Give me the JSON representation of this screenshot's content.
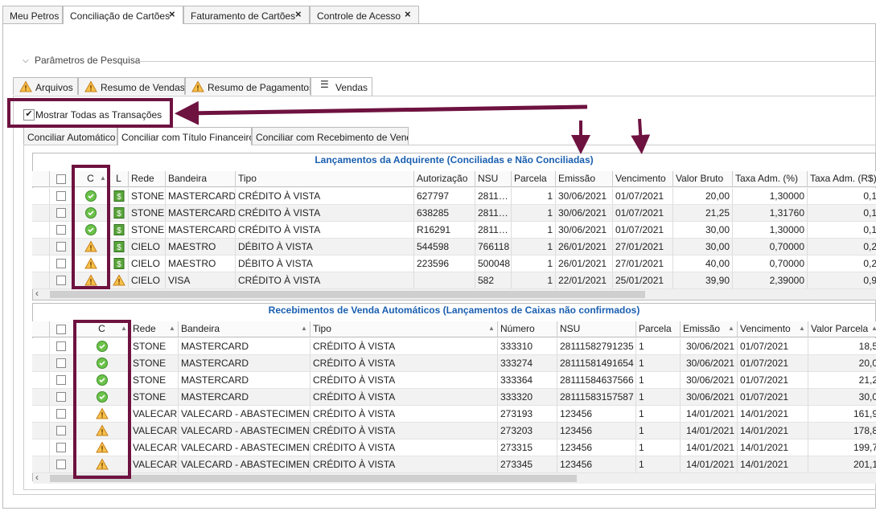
{
  "top_tabs": [
    "Meu Petros",
    "Conciliação de Cartões",
    "Faturamento de Cartões",
    "Controle de Acesso"
  ],
  "section_title": "Parâmetros de Pesquisa",
  "inner_tabs": [
    "Arquivos",
    "Resumo de Vendas",
    "Resumo de Pagamentos",
    "Vendas"
  ],
  "checkbox_label": "Mostrar Todas as Transações",
  "sub_tabs": [
    "Conciliar Automático",
    "Conciliar com Título Financeiro",
    "Conciliar com Recebimento de Venda"
  ],
  "grid1": {
    "title": "Lançamentos da Adquirente (Conciliadas e Não Conciliadas)",
    "columns": [
      "C",
      "L",
      "Rede",
      "Bandeira",
      "Tipo",
      "Autorização",
      "NSU",
      "Parcela",
      "Emissão",
      "Vencimento",
      "Valor Bruto",
      "Taxa Adm. (%)",
      "Taxa Adm. (R$)"
    ],
    "rows": [
      {
        "status": "ok",
        "l_status": "money",
        "cells": [
          "STONE",
          "MASTERCARD",
          "CRÉDITO À VISTA",
          "627797",
          "2811…",
          "1",
          "30/06/2021",
          "01/07/2021",
          "20,00",
          "1,30000",
          "0,1"
        ]
      },
      {
        "status": "ok",
        "l_status": "money",
        "cells": [
          "STONE",
          "MASTERCARD",
          "CRÉDITO À VISTA",
          "638285",
          "2811…",
          "1",
          "30/06/2021",
          "01/07/2021",
          "21,25",
          "1,31760",
          "0,1"
        ]
      },
      {
        "status": "ok",
        "l_status": "money",
        "cells": [
          "STONE",
          "MASTERCARD",
          "CRÉDITO À VISTA",
          "R16291",
          "2811…",
          "1",
          "30/06/2021",
          "01/07/2021",
          "30,00",
          "1,30000",
          "0,1"
        ]
      },
      {
        "status": "warn",
        "l_status": "money",
        "cells": [
          "CIELO",
          "MAESTRO",
          "DÉBITO À VISTA",
          "544598",
          "766118",
          "1",
          "26/01/2021",
          "27/01/2021",
          "30,00",
          "0,70000",
          "0,2"
        ]
      },
      {
        "status": "warn",
        "l_status": "money",
        "cells": [
          "CIELO",
          "MAESTRO",
          "DÉBITO À VISTA",
          "223596",
          "500048",
          "1",
          "26/01/2021",
          "27/01/2021",
          "40,00",
          "0,70000",
          "0,2"
        ]
      },
      {
        "status": "warn",
        "l_status": "warn",
        "cells": [
          "CIELO",
          "VISA",
          "CRÉDITO À VISTA",
          null,
          "582",
          "1",
          "22/01/2021",
          "25/01/2021",
          "39,90",
          "2,39000",
          "0,9"
        ]
      }
    ]
  },
  "grid2": {
    "title": "Recebimentos de Venda Automáticos (Lançamentos de Caixas não confirmados)",
    "columns": [
      "C",
      "Rede",
      "Bandeira",
      "Tipo",
      "Número",
      "NSU",
      "Parcela",
      "Emissão",
      "Vencimento",
      "Valor Parcela"
    ],
    "rows": [
      {
        "status": "ok",
        "cells": [
          "STONE",
          "MASTERCARD",
          "CRÉDITO À VISTA",
          "333310",
          "28111582791235",
          "1",
          "30/06/2021",
          "01/07/2021",
          "18,5"
        ]
      },
      {
        "status": "ok",
        "cells": [
          "STONE",
          "MASTERCARD",
          "CRÉDITO À VISTA",
          "333274",
          "28111581491654",
          "1",
          "30/06/2021",
          "01/07/2021",
          "20,0"
        ]
      },
      {
        "status": "ok",
        "cells": [
          "STONE",
          "MASTERCARD",
          "CRÉDITO À VISTA",
          "333364",
          "28111584637566",
          "1",
          "30/06/2021",
          "01/07/2021",
          "21,2"
        ]
      },
      {
        "status": "ok",
        "cells": [
          "STONE",
          "MASTERCARD",
          "CRÉDITO À VISTA",
          "333320",
          "28111583157587",
          "1",
          "30/06/2021",
          "01/07/2021",
          "30,0"
        ]
      },
      {
        "status": "warn",
        "cells": [
          "VALECARD",
          "VALECARD - ABASTECIMENTO",
          "CRÉDITO À VISTA",
          "273193",
          "123456",
          "1",
          "14/01/2021",
          "14/01/2021",
          "161,9"
        ]
      },
      {
        "status": "warn",
        "cells": [
          "VALECARD",
          "VALECARD - ABASTECIMENTO",
          "CRÉDITO À VISTA",
          "273203",
          "123456",
          "1",
          "14/01/2021",
          "14/01/2021",
          "178,8"
        ]
      },
      {
        "status": "warn",
        "cells": [
          "VALECARD",
          "VALECARD - ABASTECIMENTO",
          "CRÉDITO À VISTA",
          "273315",
          "123456",
          "1",
          "14/01/2021",
          "14/01/2021",
          "199,7"
        ]
      },
      {
        "status": "warn",
        "cells": [
          "VALECARD",
          "VALECARD - ABASTECIMENTO",
          "CRÉDITO À VISTA",
          "273345",
          "123456",
          "1",
          "14/01/2021",
          "14/01/2021",
          "201,1"
        ]
      }
    ]
  }
}
